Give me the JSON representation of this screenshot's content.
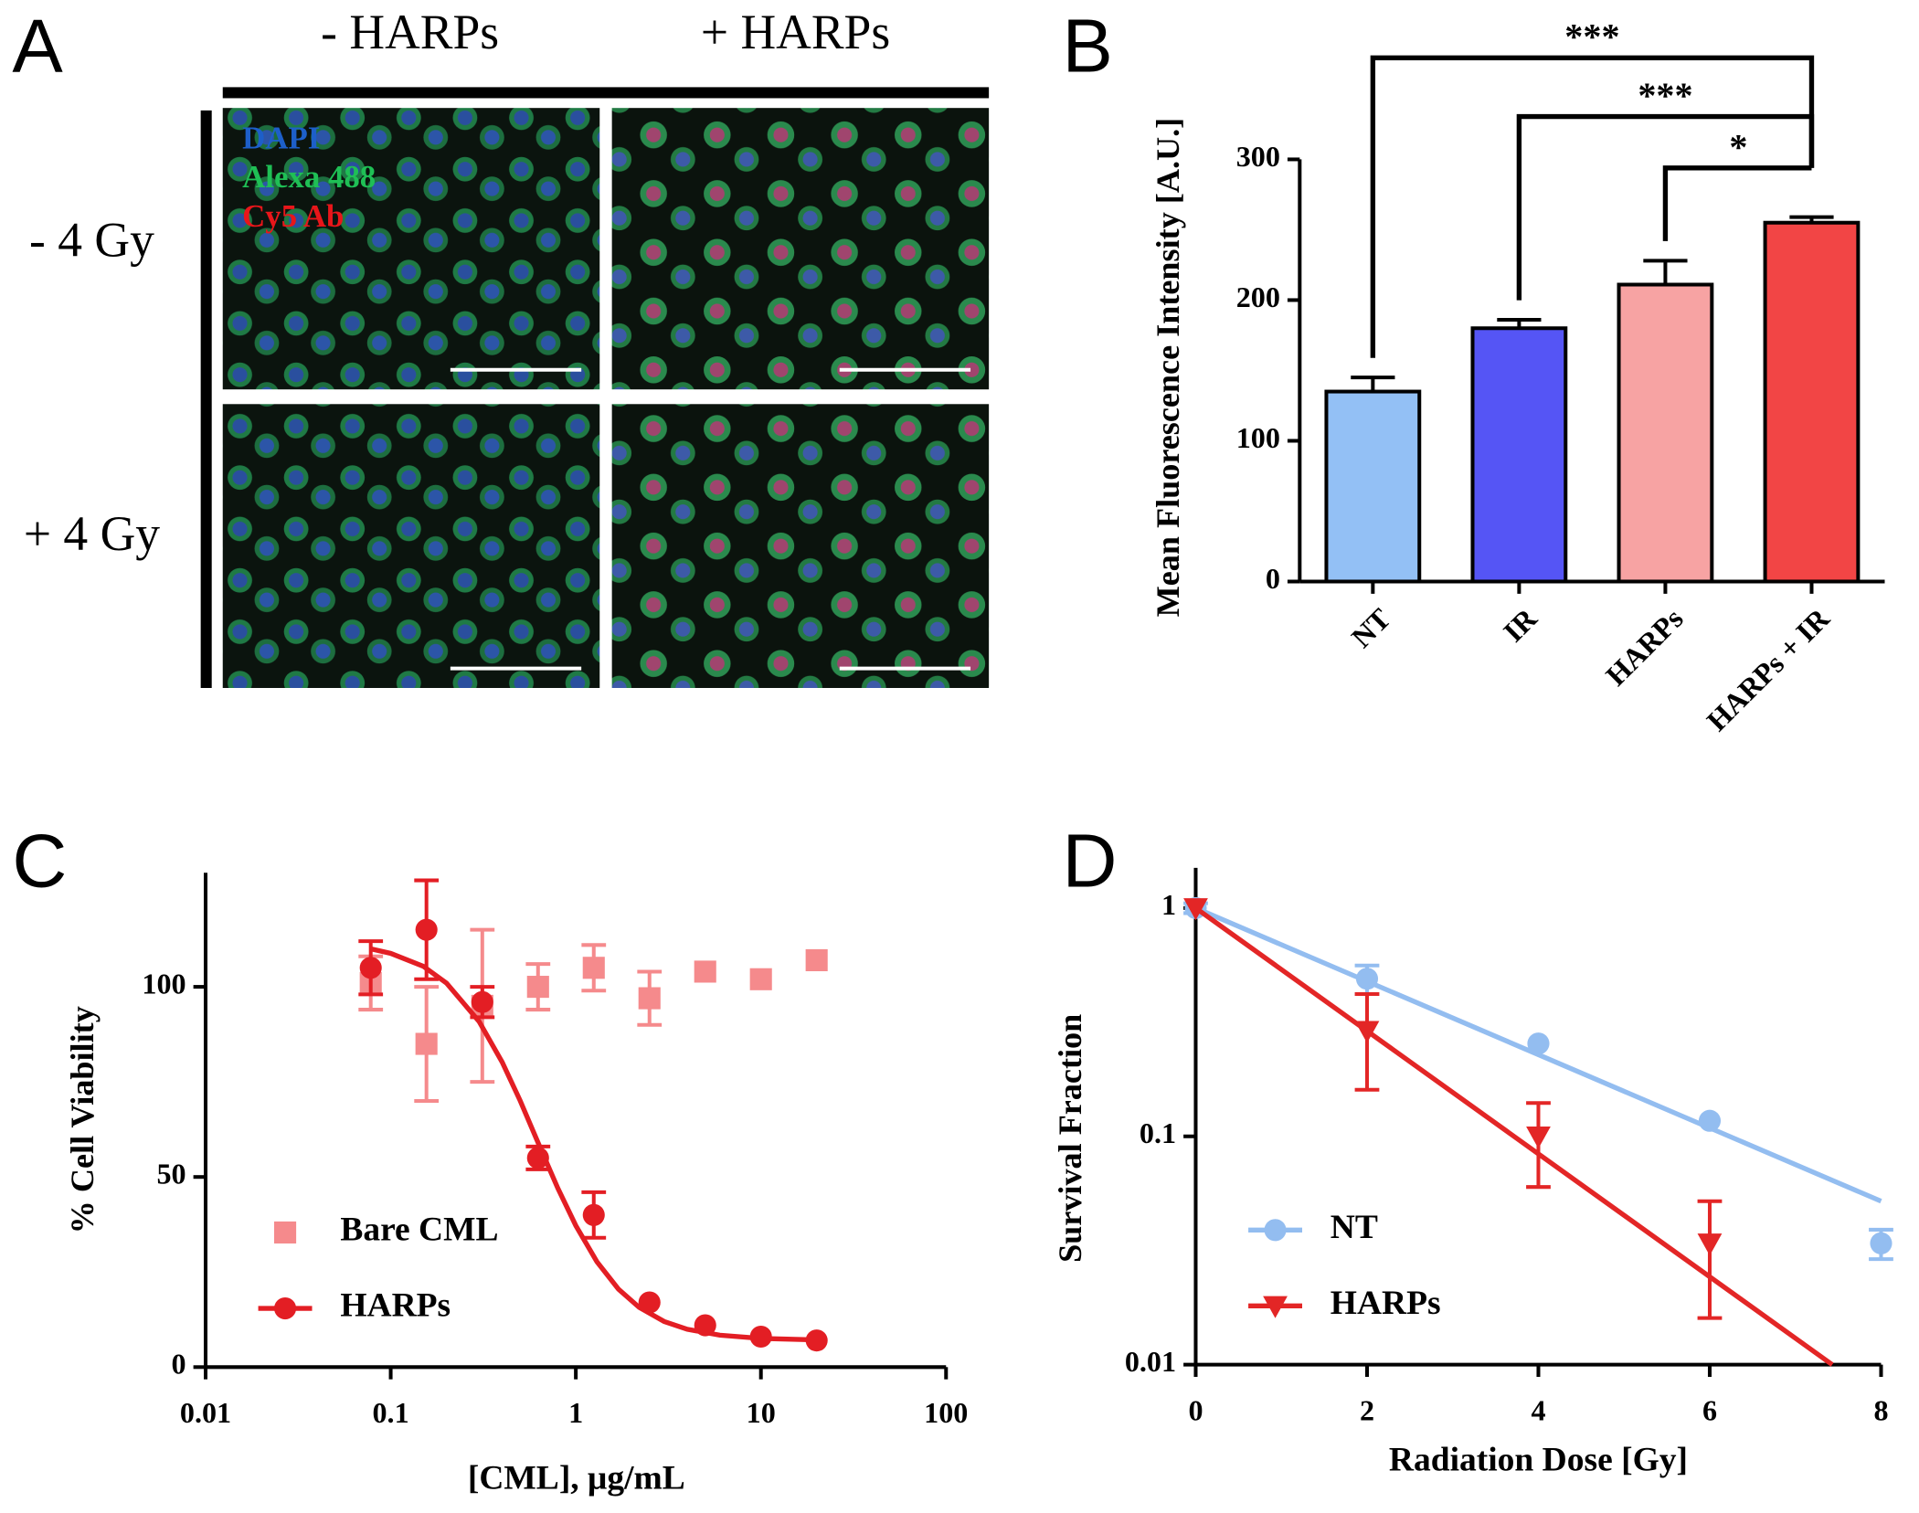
{
  "panel_a": {
    "panel_label": "A",
    "columns": [
      "- HARPs",
      "+ HARPs"
    ],
    "rows": [
      "- 4 Gy",
      "+ 4 Gy"
    ],
    "channels": [
      {
        "name": "DAPI",
        "color": "#1d5fc9"
      },
      {
        "name": "Alexa 488",
        "color": "#1fbf55"
      },
      {
        "name": "Cy5 Ab",
        "color": "#e8161a"
      }
    ]
  },
  "chart_data": [
    {
      "type": "bar",
      "panel_label": "B",
      "y_label": "Mean Fluorescence Intensity [A.U.]",
      "categories": [
        "NT",
        "IR",
        "HARPs",
        "HARPs + IR"
      ],
      "values": [
        135,
        180,
        211,
        255
      ],
      "errors": [
        10,
        6,
        17,
        4
      ],
      "colors": [
        "#93c0f5",
        "#5555f5",
        "#f7a3a3",
        "#f24545"
      ],
      "ylim": [
        0,
        300
      ],
      "yticks": [
        0,
        100,
        200,
        300
      ],
      "comparisons": [
        {
          "label": "***",
          "groups": [
            "NT",
            "HARPs + IR"
          ]
        },
        {
          "label": "***",
          "groups": [
            "IR",
            "HARPs + IR"
          ]
        },
        {
          "label": "*",
          "groups": [
            "HARPs",
            "HARPs + IR"
          ]
        }
      ]
    },
    {
      "type": "scatter",
      "panel_label": "C",
      "x_label": "[CML], μg/mL",
      "y_label": "% Cell Viability",
      "xscale": "log",
      "xlim": [
        0.01,
        100
      ],
      "xticks": [
        0.01,
        0.1,
        1,
        10,
        100
      ],
      "ylim": [
        0,
        130
      ],
      "yticks": [
        0,
        50,
        100
      ],
      "legend": "lower left",
      "series": [
        {
          "name": "Bare CML",
          "color": "#f58a8c",
          "marker": "square",
          "x": [
            0.078,
            0.156,
            0.3125,
            0.625,
            1.25,
            2.5,
            5,
            10,
            20
          ],
          "values": [
            101,
            85,
            95,
            100,
            105,
            97,
            104,
            102,
            107
          ],
          "errors": [
            7,
            15,
            20,
            6,
            6,
            7,
            null,
            null,
            null
          ]
        },
        {
          "name": "HARPs",
          "color": "#e31e24",
          "marker": "circle",
          "x": [
            0.078,
            0.156,
            0.3125,
            0.625,
            1.25,
            2.5,
            5,
            10,
            20
          ],
          "values": [
            105,
            115,
            96,
            55,
            40,
            17,
            11,
            8,
            7
          ],
          "errors": [
            7,
            13,
            4,
            3,
            6,
            null,
            null,
            null,
            null
          ],
          "fit": {
            "x": [
              0.078,
              0.1,
              0.15,
              0.2,
              0.3,
              0.4,
              0.5,
              0.65,
              0.8,
              1,
              1.3,
              1.7,
              2.2,
              3,
              4,
              6,
              10,
              20
            ],
            "values": [
              110,
              108.8,
              105.4,
              101,
              90.9,
              80.2,
              70.1,
              57.1,
              47,
              37.2,
              27.7,
              20.5,
              15.7,
              12,
              9.95,
              8.39,
              7.53,
              7.14
            ]
          }
        }
      ]
    },
    {
      "type": "scatter",
      "panel_label": "D",
      "x_label": "Radiation Dose [Gy]",
      "y_label": "Survival Fraction",
      "yscale": "log",
      "xlim": [
        0,
        8
      ],
      "xticks": [
        0,
        2,
        4,
        6,
        8
      ],
      "ylim": [
        0.01,
        1.5
      ],
      "yticks": [
        0.01,
        0.1,
        1
      ],
      "legend": "lower left",
      "series": [
        {
          "name": "NT",
          "color": "#93bdf0",
          "marker": "circle",
          "x": [
            0,
            2,
            4,
            6,
            8
          ],
          "values": [
            1,
            0.49,
            0.255,
            0.117,
            0.034
          ],
          "errors": [
            0.05,
            0.07,
            null,
            null,
            0.005
          ],
          "fit": {
            "x": [
              0,
              8
            ],
            "values": [
              1,
              0.052
            ]
          }
        },
        {
          "name": "HARPs",
          "color": "#e32626",
          "marker": "triangle-down",
          "x": [
            0,
            2,
            4,
            6,
            8
          ],
          "values": [
            1,
            0.29,
            0.1,
            0.034,
            null
          ],
          "errors": [
            null,
            0.13,
            0.04,
            0.018,
            null
          ],
          "fit": {
            "x": [
              0,
              7.43
            ],
            "values": [
              1,
              0.01
            ]
          }
        }
      ]
    }
  ]
}
